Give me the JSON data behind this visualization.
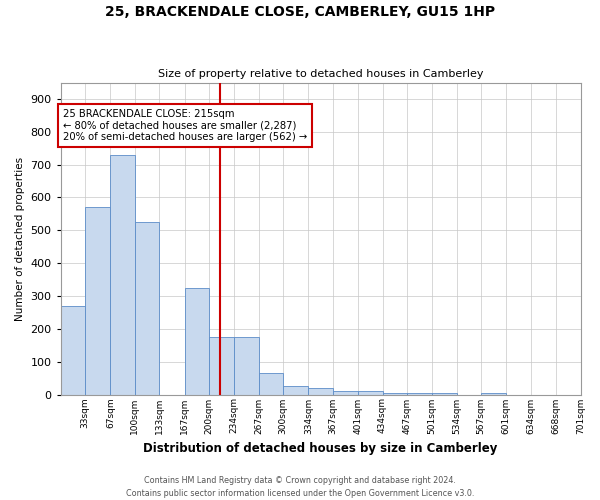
{
  "title": "25, BRACKENDALE CLOSE, CAMBERLEY, GU15 1HP",
  "subtitle": "Size of property relative to detached houses in Camberley",
  "xlabel": "Distribution of detached houses by size in Camberley",
  "ylabel": "Number of detached properties",
  "footnote": "Contains HM Land Registry data © Crown copyright and database right 2024.\nContains public sector information licensed under the Open Government Licence v3.0.",
  "annotation_line1": "25 BRACKENDALE CLOSE: 215sqm",
  "annotation_line2": "← 80% of detached houses are smaller (2,287)",
  "annotation_line3": "20% of semi-detached houses are larger (562) →",
  "bar_color": "#c8d9ee",
  "bar_edge_color": "#5b8cc8",
  "line_color": "#cc0000",
  "annotation_box_color": "#cc0000",
  "bin_left_edges": [
    0,
    33,
    67,
    100,
    133,
    167,
    200,
    234,
    267,
    300,
    334,
    367,
    401,
    434,
    467,
    501,
    534,
    567,
    601,
    634,
    668
  ],
  "bin_right_edges": [
    33,
    67,
    100,
    133,
    167,
    200,
    234,
    267,
    300,
    334,
    367,
    401,
    434,
    467,
    501,
    534,
    567,
    601,
    634,
    668,
    701
  ],
  "tick_labels": [
    "33sqm",
    "67sqm",
    "100sqm",
    "133sqm",
    "167sqm",
    "200sqm",
    "234sqm",
    "267sqm",
    "300sqm",
    "334sqm",
    "367sqm",
    "401sqm",
    "434sqm",
    "467sqm",
    "501sqm",
    "534sqm",
    "567sqm",
    "601sqm",
    "634sqm",
    "668sqm",
    "701sqm"
  ],
  "values": [
    270,
    570,
    730,
    525,
    0,
    325,
    175,
    175,
    65,
    25,
    20,
    10,
    10,
    5,
    5,
    5,
    0,
    5,
    0,
    0,
    0
  ],
  "property_line_x": 215,
  "ylim": [
    0,
    950
  ],
  "yticks": [
    0,
    100,
    200,
    300,
    400,
    500,
    600,
    700,
    800,
    900
  ],
  "xmin": 0,
  "xmax": 701,
  "bg_color": "#ffffff",
  "grid_color": "#c8c8c8"
}
